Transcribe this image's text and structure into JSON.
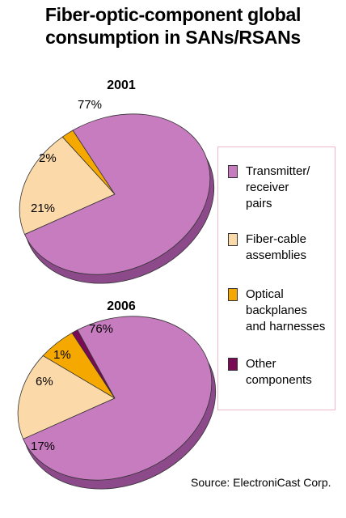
{
  "title_lines": [
    "Fiber-optic-component global",
    "consumption in SANs/RSANs"
  ],
  "source": "Source: ElectroniCast Corp.",
  "colors": {
    "transmitter": "#c87cc0",
    "fiber_cable": "#fcd9a8",
    "backplanes": "#f5a800",
    "other": "#7a0a56",
    "edge": "#8c4a8a",
    "legend_border": "#f0b8c8"
  },
  "legend": [
    {
      "key": "transmitter",
      "label": "Transmitter/ receiver pairs",
      "lines": [
        "Transmitter/",
        "receiver",
        "pairs"
      ]
    },
    {
      "key": "fiber_cable",
      "label": "Fiber-cable assemblies",
      "lines": [
        "Fiber-cable",
        "assemblies"
      ]
    },
    {
      "key": "backplanes",
      "label": "Optical backplanes and harnesses",
      "lines": [
        "Optical",
        "backplanes",
        "and harnesses"
      ]
    },
    {
      "key": "other",
      "label": "Other components",
      "lines": [
        "Other",
        "components"
      ]
    }
  ],
  "chart_data": [
    {
      "type": "pie",
      "title": "2001",
      "categories": [
        "Transmitter/ receiver pairs",
        "Fiber-cable assemblies",
        "Optical backplanes and harnesses",
        "Other components"
      ],
      "values": [
        77,
        21,
        2,
        0
      ],
      "labels": [
        "77%",
        "21%",
        "2%",
        ""
      ]
    },
    {
      "type": "pie",
      "title": "2006",
      "categories": [
        "Transmitter/ receiver pairs",
        "Fiber-cable assemblies",
        "Optical backplanes and harnesses",
        "Other components"
      ],
      "values": [
        76,
        17,
        6,
        1
      ],
      "labels": [
        "76%",
        "17%",
        "6%",
        "1%"
      ]
    }
  ]
}
